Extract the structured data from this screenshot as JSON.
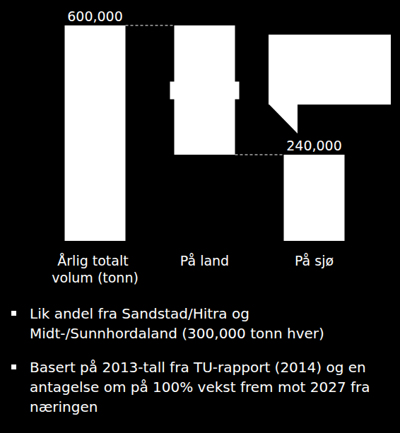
{
  "chart_data": {
    "type": "waterfall",
    "categories": [
      "Årlig totalt volum (tonn)",
      "På land",
      "På sjø"
    ],
    "values": [
      600000,
      360000,
      240000
    ],
    "value_labels": [
      "600,000",
      null,
      "240,000"
    ],
    "data_labels": true,
    "color": "#ffffff",
    "ylim": [
      0,
      600000
    ],
    "yticks": [
      0,
      600000
    ],
    "tick_labels": "x",
    "grid": false
  },
  "notes": [
    "Lik andel fra Sandstad/Hitra og Midt-/Sunnhordaland (300,000 tonn hver)",
    "Basert på 2013-tall fra TU-rapport (2014) og en antagelse om på 100% vekst frem mot 2027 fra næringen"
  ]
}
